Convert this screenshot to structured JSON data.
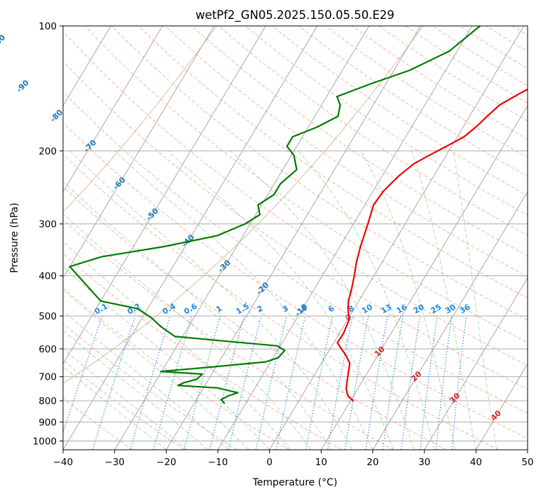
{
  "chart_data": {
    "type": "line",
    "title": "wetPf2_GN05.2025.150.05.50.E29",
    "xlabel": "Temperature (°C)",
    "ylabel": "Pressure (hPa)",
    "xlim": [
      -40,
      50
    ],
    "ylim": [
      1050,
      100
    ],
    "y_scale": "log",
    "x_ticks": [
      -40,
      -30,
      -20,
      -10,
      0,
      10,
      20,
      30,
      40,
      50
    ],
    "y_ticks": [
      1000,
      900,
      800,
      700,
      600,
      500,
      400,
      300,
      200,
      100
    ],
    "x_tick_labels": [
      "−40",
      "−30",
      "−20",
      "−10",
      "0",
      "10",
      "20",
      "30",
      "40",
      "50"
    ],
    "y_tick_labels": [
      "1000",
      "900",
      "800",
      "700",
      "600",
      "500",
      "400",
      "300",
      "200",
      "100"
    ],
    "grid": true,
    "series": [
      {
        "color": "#ee0000",
        "points": [
          [
            10.5,
            800
          ],
          [
            9.0,
            780
          ],
          [
            7.8,
            750
          ],
          [
            7.0,
            715
          ],
          [
            6.2,
            680
          ],
          [
            5.5,
            650
          ],
          [
            3.7,
            620
          ],
          [
            2.2,
            600
          ],
          [
            0.7,
            580
          ],
          [
            0.8,
            550
          ],
          [
            0.3,
            510
          ],
          [
            -1.2,
            480
          ],
          [
            -2.0,
            460
          ],
          [
            -2.8,
            430
          ],
          [
            -3.8,
            400
          ],
          [
            -5.0,
            370
          ],
          [
            -6.0,
            340
          ],
          [
            -7.2,
            300
          ],
          [
            -8.3,
            270
          ],
          [
            -8.0,
            250
          ],
          [
            -6.8,
            230
          ],
          [
            -5.3,
            215
          ],
          [
            -3.3,
            205
          ],
          [
            -1.0,
            195
          ],
          [
            1.3,
            185
          ],
          [
            2.5,
            175
          ],
          [
            3.4,
            165
          ],
          [
            4.5,
            155
          ],
          [
            7.2,
            145
          ],
          [
            10.5,
            135
          ],
          [
            12.4,
            125
          ],
          [
            13.5,
            118
          ],
          [
            14.3,
            112
          ],
          [
            16.5,
            106
          ],
          [
            18.5,
            100
          ]
        ]
      },
      {
        "color": "#007a00",
        "points": [
          [
            -14.2,
            810
          ],
          [
            -15.2,
            795
          ],
          [
            -14.2,
            778
          ],
          [
            -12.8,
            765
          ],
          [
            -17.3,
            745
          ],
          [
            -25.2,
            735
          ],
          [
            -24.5,
            725
          ],
          [
            -22.3,
            710
          ],
          [
            -21.8,
            690
          ],
          [
            -30.2,
            680
          ],
          [
            -21.7,
            665
          ],
          [
            -11.0,
            645
          ],
          [
            -9.0,
            630
          ],
          [
            -8.6,
            605
          ],
          [
            -10.6,
            590
          ],
          [
            -21.0,
            575
          ],
          [
            -31.5,
            560
          ],
          [
            -35.4,
            530
          ],
          [
            -38.2,
            505
          ],
          [
            -42.0,
            480
          ],
          [
            -50.0,
            460
          ],
          [
            -60.0,
            380
          ],
          [
            -55.0,
            360
          ],
          [
            -44.0,
            340
          ],
          [
            -35.0,
            320
          ],
          [
            -31.0,
            300
          ],
          [
            -29.2,
            285
          ],
          [
            -30.7,
            270
          ],
          [
            -28.8,
            255
          ],
          [
            -28.8,
            240
          ],
          [
            -27.3,
            222
          ],
          [
            -29.5,
            205
          ],
          [
            -31.9,
            195
          ],
          [
            -31.9,
            185
          ],
          [
            -28.2,
            175
          ],
          [
            -25.5,
            165
          ],
          [
            -26.4,
            155
          ],
          [
            -28.0,
            148
          ],
          [
            -23.0,
            138
          ],
          [
            -17.0,
            128
          ],
          [
            -11.5,
            115
          ],
          [
            -8.5,
            100
          ]
        ]
      }
    ],
    "isotherm_labels": [
      "-100",
      "-90",
      "-80",
      "-70",
      "-60",
      "-50",
      "-40",
      "-30",
      "-20",
      "-10",
      "0",
      "10",
      "20",
      "30",
      "40"
    ],
    "mixing_ratio_labels": [
      "0.1",
      "0.2",
      "0.4",
      "0.6",
      "1",
      "1.5",
      "2",
      "3",
      "4",
      "6",
      "8",
      "10",
      "13",
      "16",
      "20",
      "25",
      "30",
      "36"
    ],
    "colors": {
      "temperature": "#ee0000",
      "dewpoint": "#007a00",
      "isotherm_label_cold": "#1f77b4",
      "isotherm_label_zero": "#808080",
      "isotherm_label_warm": "#d62728",
      "mixing_ratio": "#1e88e5",
      "dry_adiabat": "#ff8a65",
      "moist_adiabat": "#81c784",
      "isotherm_line": "#a0a0a0",
      "special_line": "#d2b48c"
    }
  }
}
